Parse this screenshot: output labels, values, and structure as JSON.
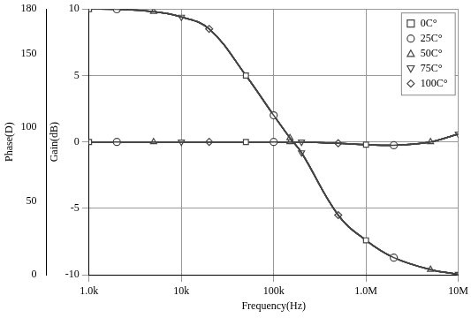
{
  "chart_data": {
    "type": "line",
    "x_label": "Frequency(Hz)",
    "y_label": "Gain(dB)",
    "y2_label": "Phase(D)",
    "log": "x",
    "grid": true,
    "legend": "top-right",
    "x": [
      1000,
      2000,
      5000,
      10000,
      20000,
      50000,
      100000,
      150000,
      200000,
      500000,
      1000000,
      2000000,
      5000000,
      10000000
    ],
    "xlim": [
      1000,
      10000000
    ],
    "xticks": [
      {
        "value": 1000,
        "label": "1.0k"
      },
      {
        "value": 10000,
        "label": "10k"
      },
      {
        "value": 100000,
        "label": "100k"
      },
      {
        "value": 1000000,
        "label": "1.0M"
      },
      {
        "value": 10000000,
        "label": "10M"
      }
    ],
    "ylim": [
      -10,
      10
    ],
    "yticks": [
      -10,
      -5,
      0,
      5,
      10
    ],
    "y2lim": [
      0,
      180
    ],
    "y2ticks": [
      0,
      50,
      100,
      150,
      180
    ],
    "series": [
      {
        "name": "0C°",
        "color": "#444444",
        "marker": "square",
        "values": [
          10,
          9.98,
          9.8,
          9.4,
          8.5,
          5.0,
          2.0,
          0.3,
          -0.8,
          -5.5,
          -7.4,
          -8.7,
          -9.6,
          -9.95
        ]
      },
      {
        "name": "25C°",
        "color": "#444444",
        "marker": "circle",
        "values": [
          10,
          9.98,
          9.8,
          9.4,
          8.5,
          5.0,
          2.0,
          0.3,
          -0.8,
          -5.5,
          -7.4,
          -8.7,
          -9.6,
          -9.95
        ]
      },
      {
        "name": "50C°",
        "color": "#444444",
        "marker": "triangle",
        "values": [
          10,
          9.98,
          9.8,
          9.4,
          8.5,
          5.0,
          2.0,
          0.3,
          -0.8,
          -5.5,
          -7.4,
          -8.7,
          -9.6,
          -9.95
        ]
      },
      {
        "name": "75C°",
        "color": "#444444",
        "marker": "triangle_down",
        "values": [
          10,
          9.98,
          9.8,
          9.4,
          8.5,
          5.0,
          2.0,
          0.3,
          -0.8,
          -5.5,
          -7.4,
          -8.7,
          -9.6,
          -9.95
        ]
      },
      {
        "name": "100C°",
        "color": "#444444",
        "marker": "diamond",
        "values": [
          10,
          9.98,
          9.8,
          9.4,
          8.5,
          5.0,
          2.0,
          0.3,
          -0.8,
          -5.5,
          -7.4,
          -8.7,
          -9.6,
          -9.95
        ]
      },
      {
        "name": "0C°",
        "color": "#444444",
        "marker": "square",
        "values": [
          0,
          0,
          0,
          0,
          0,
          0,
          0,
          0,
          0,
          -0.1,
          -0.2,
          -0.25,
          0,
          0.6
        ]
      },
      {
        "name": "25C°",
        "color": "#444444",
        "marker": "circle",
        "values": [
          0,
          0,
          0,
          0,
          0,
          0,
          0,
          0,
          0,
          -0.1,
          -0.2,
          -0.25,
          0,
          0.6
        ]
      },
      {
        "name": "50C°",
        "color": "#444444",
        "marker": "triangle",
        "values": [
          0,
          0,
          0,
          0,
          0,
          0,
          0,
          0,
          0,
          -0.1,
          -0.2,
          -0.25,
          0,
          0.6
        ]
      },
      {
        "name": "75C°",
        "color": "#444444",
        "marker": "triangle_down",
        "values": [
          0,
          0,
          0,
          0,
          0,
          0,
          0,
          0,
          0,
          -0.1,
          -0.2,
          -0.25,
          0,
          0.6
        ]
      },
      {
        "name": "100C°",
        "color": "#444444",
        "marker": "diamond",
        "values": [
          0,
          0,
          0,
          0,
          0,
          0,
          0,
          0,
          0,
          -0.1,
          -0.2,
          -0.25,
          0,
          0.6
        ]
      }
    ]
  }
}
